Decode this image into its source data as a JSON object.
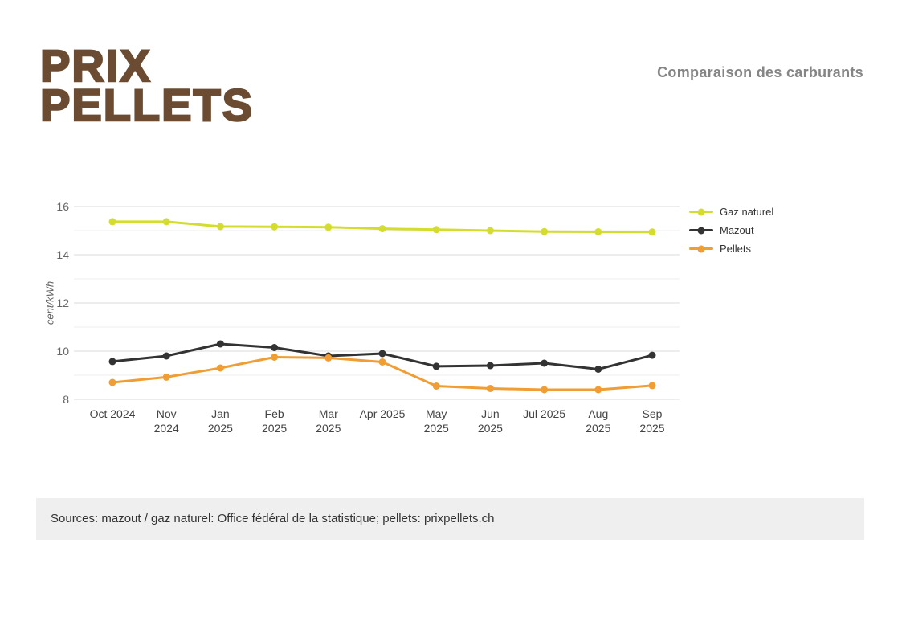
{
  "logo": {
    "line1": "PRIX",
    "line2": "PELLETS",
    "color": "#6b4c33"
  },
  "header": {
    "title": "Comparaison des carburants"
  },
  "chart_data": {
    "type": "line",
    "title": "Comparaison des carburants",
    "xlabel": "",
    "ylabel": "cent/kWh",
    "ylim": [
      8,
      16
    ],
    "grid": "horizontal, every 1 unit",
    "y_ticks": [
      16,
      14,
      12,
      10,
      8
    ],
    "legend_position": "right",
    "categories": [
      "Oct 2024",
      "Nov\n2024",
      "Jan\n2025",
      "Feb\n2025",
      "Mar\n2025",
      "Apr 2025",
      "May\n2025",
      "Jun\n2025",
      "Jul 2025",
      "Aug\n2025",
      "Sep\n2025"
    ],
    "series": [
      {
        "name": "Gaz naturel",
        "color": "#d4dd2e",
        "values": [
          15.37,
          15.37,
          15.17,
          15.16,
          15.14,
          15.08,
          15.04,
          15.0,
          14.96,
          14.95,
          14.94
        ]
      },
      {
        "name": "Mazout",
        "color": "#333333",
        "values": [
          9.57,
          9.8,
          10.3,
          10.15,
          9.8,
          9.9,
          9.37,
          9.4,
          9.5,
          9.25,
          9.83
        ]
      },
      {
        "name": "Pellets",
        "color": "#f09d33",
        "values": [
          8.7,
          8.92,
          9.3,
          9.75,
          9.72,
          9.55,
          8.55,
          8.45,
          8.4,
          8.4,
          8.57
        ]
      }
    ]
  },
  "footer": {
    "source_text": "Sources: mazout / gaz naturel: Office fédéral de la statistique; pellets: prixpellets.ch"
  }
}
